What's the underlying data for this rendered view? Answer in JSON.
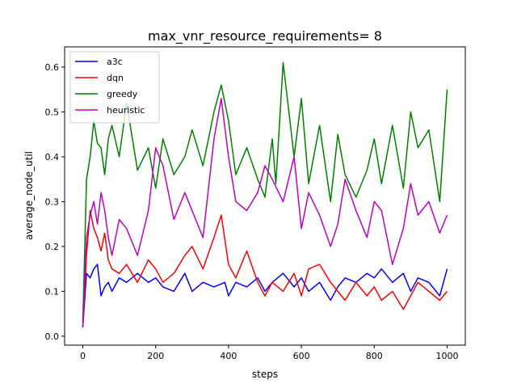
{
  "chart_data": {
    "type": "line",
    "title": "max_vnr_resource_requirements= 8",
    "xlabel": "steps",
    "ylabel": "average_node_util",
    "xlim": [
      -50,
      1050
    ],
    "ylim": [
      -0.02,
      0.645
    ],
    "xticks": [
      0,
      200,
      400,
      600,
      800,
      1000
    ],
    "yticks": [
      0.0,
      0.1,
      0.2,
      0.3,
      0.4,
      0.5,
      0.6
    ],
    "legend": "top-left",
    "grid": false,
    "series": [
      {
        "name": "a3c",
        "color": "#0000ff",
        "x": [
          0,
          10,
          20,
          30,
          40,
          50,
          60,
          70,
          80,
          100,
          120,
          150,
          180,
          200,
          220,
          250,
          280,
          300,
          330,
          360,
          390,
          400,
          420,
          450,
          480,
          500,
          520,
          550,
          580,
          600,
          620,
          650,
          680,
          700,
          720,
          750,
          780,
          800,
          820,
          850,
          880,
          900,
          920,
          950,
          980,
          1000
        ],
        "values": [
          0.02,
          0.14,
          0.13,
          0.15,
          0.16,
          0.09,
          0.11,
          0.12,
          0.1,
          0.13,
          0.12,
          0.14,
          0.12,
          0.13,
          0.11,
          0.1,
          0.14,
          0.1,
          0.12,
          0.11,
          0.12,
          0.09,
          0.12,
          0.11,
          0.13,
          0.1,
          0.12,
          0.14,
          0.11,
          0.13,
          0.1,
          0.12,
          0.08,
          0.11,
          0.13,
          0.12,
          0.14,
          0.13,
          0.15,
          0.12,
          0.14,
          0.1,
          0.13,
          0.12,
          0.09,
          0.15
        ]
      },
      {
        "name": "dqn",
        "color": "#ff0000",
        "x": [
          0,
          10,
          20,
          30,
          40,
          50,
          60,
          70,
          80,
          100,
          120,
          150,
          180,
          200,
          220,
          250,
          280,
          300,
          330,
          360,
          380,
          400,
          420,
          450,
          480,
          500,
          520,
          550,
          580,
          600,
          620,
          650,
          680,
          700,
          720,
          750,
          780,
          800,
          820,
          850,
          880,
          900,
          920,
          950,
          980,
          1000
        ],
        "values": [
          0.02,
          0.18,
          0.28,
          0.24,
          0.22,
          0.19,
          0.23,
          0.17,
          0.15,
          0.14,
          0.16,
          0.12,
          0.17,
          0.15,
          0.12,
          0.14,
          0.18,
          0.2,
          0.15,
          0.22,
          0.27,
          0.16,
          0.13,
          0.19,
          0.12,
          0.09,
          0.12,
          0.1,
          0.14,
          0.09,
          0.15,
          0.16,
          0.12,
          0.1,
          0.08,
          0.12,
          0.09,
          0.11,
          0.08,
          0.1,
          0.06,
          0.09,
          0.12,
          0.1,
          0.08,
          0.1
        ]
      },
      {
        "name": "greedy",
        "color": "#008000",
        "x": [
          0,
          10,
          20,
          30,
          40,
          50,
          60,
          70,
          80,
          100,
          120,
          150,
          180,
          200,
          220,
          250,
          280,
          300,
          330,
          360,
          380,
          400,
          420,
          450,
          480,
          500,
          520,
          530,
          550,
          580,
          600,
          620,
          650,
          680,
          700,
          720,
          750,
          780,
          800,
          820,
          850,
          880,
          900,
          920,
          950,
          980,
          1000
        ],
        "values": [
          0.03,
          0.35,
          0.4,
          0.48,
          0.43,
          0.42,
          0.36,
          0.44,
          0.47,
          0.4,
          0.52,
          0.37,
          0.42,
          0.33,
          0.44,
          0.36,
          0.4,
          0.46,
          0.38,
          0.5,
          0.56,
          0.48,
          0.36,
          0.42,
          0.35,
          0.31,
          0.44,
          0.34,
          0.61,
          0.4,
          0.53,
          0.34,
          0.47,
          0.3,
          0.45,
          0.36,
          0.31,
          0.37,
          0.44,
          0.34,
          0.47,
          0.33,
          0.5,
          0.42,
          0.46,
          0.3,
          0.55
        ]
      },
      {
        "name": "heuristic",
        "color": "#bf00bf",
        "x": [
          0,
          10,
          20,
          30,
          40,
          50,
          60,
          70,
          80,
          100,
          120,
          150,
          180,
          200,
          220,
          250,
          280,
          300,
          330,
          360,
          380,
          400,
          420,
          450,
          480,
          500,
          520,
          550,
          580,
          600,
          620,
          650,
          680,
          700,
          720,
          750,
          780,
          800,
          820,
          850,
          880,
          900,
          920,
          950,
          980,
          1000
        ],
        "values": [
          0.02,
          0.22,
          0.27,
          0.3,
          0.25,
          0.32,
          0.28,
          0.22,
          0.18,
          0.26,
          0.24,
          0.18,
          0.28,
          0.42,
          0.38,
          0.26,
          0.32,
          0.28,
          0.22,
          0.44,
          0.53,
          0.4,
          0.3,
          0.28,
          0.32,
          0.38,
          0.35,
          0.3,
          0.4,
          0.24,
          0.32,
          0.27,
          0.2,
          0.25,
          0.35,
          0.28,
          0.22,
          0.3,
          0.28,
          0.16,
          0.24,
          0.34,
          0.27,
          0.3,
          0.23,
          0.27
        ]
      }
    ]
  }
}
